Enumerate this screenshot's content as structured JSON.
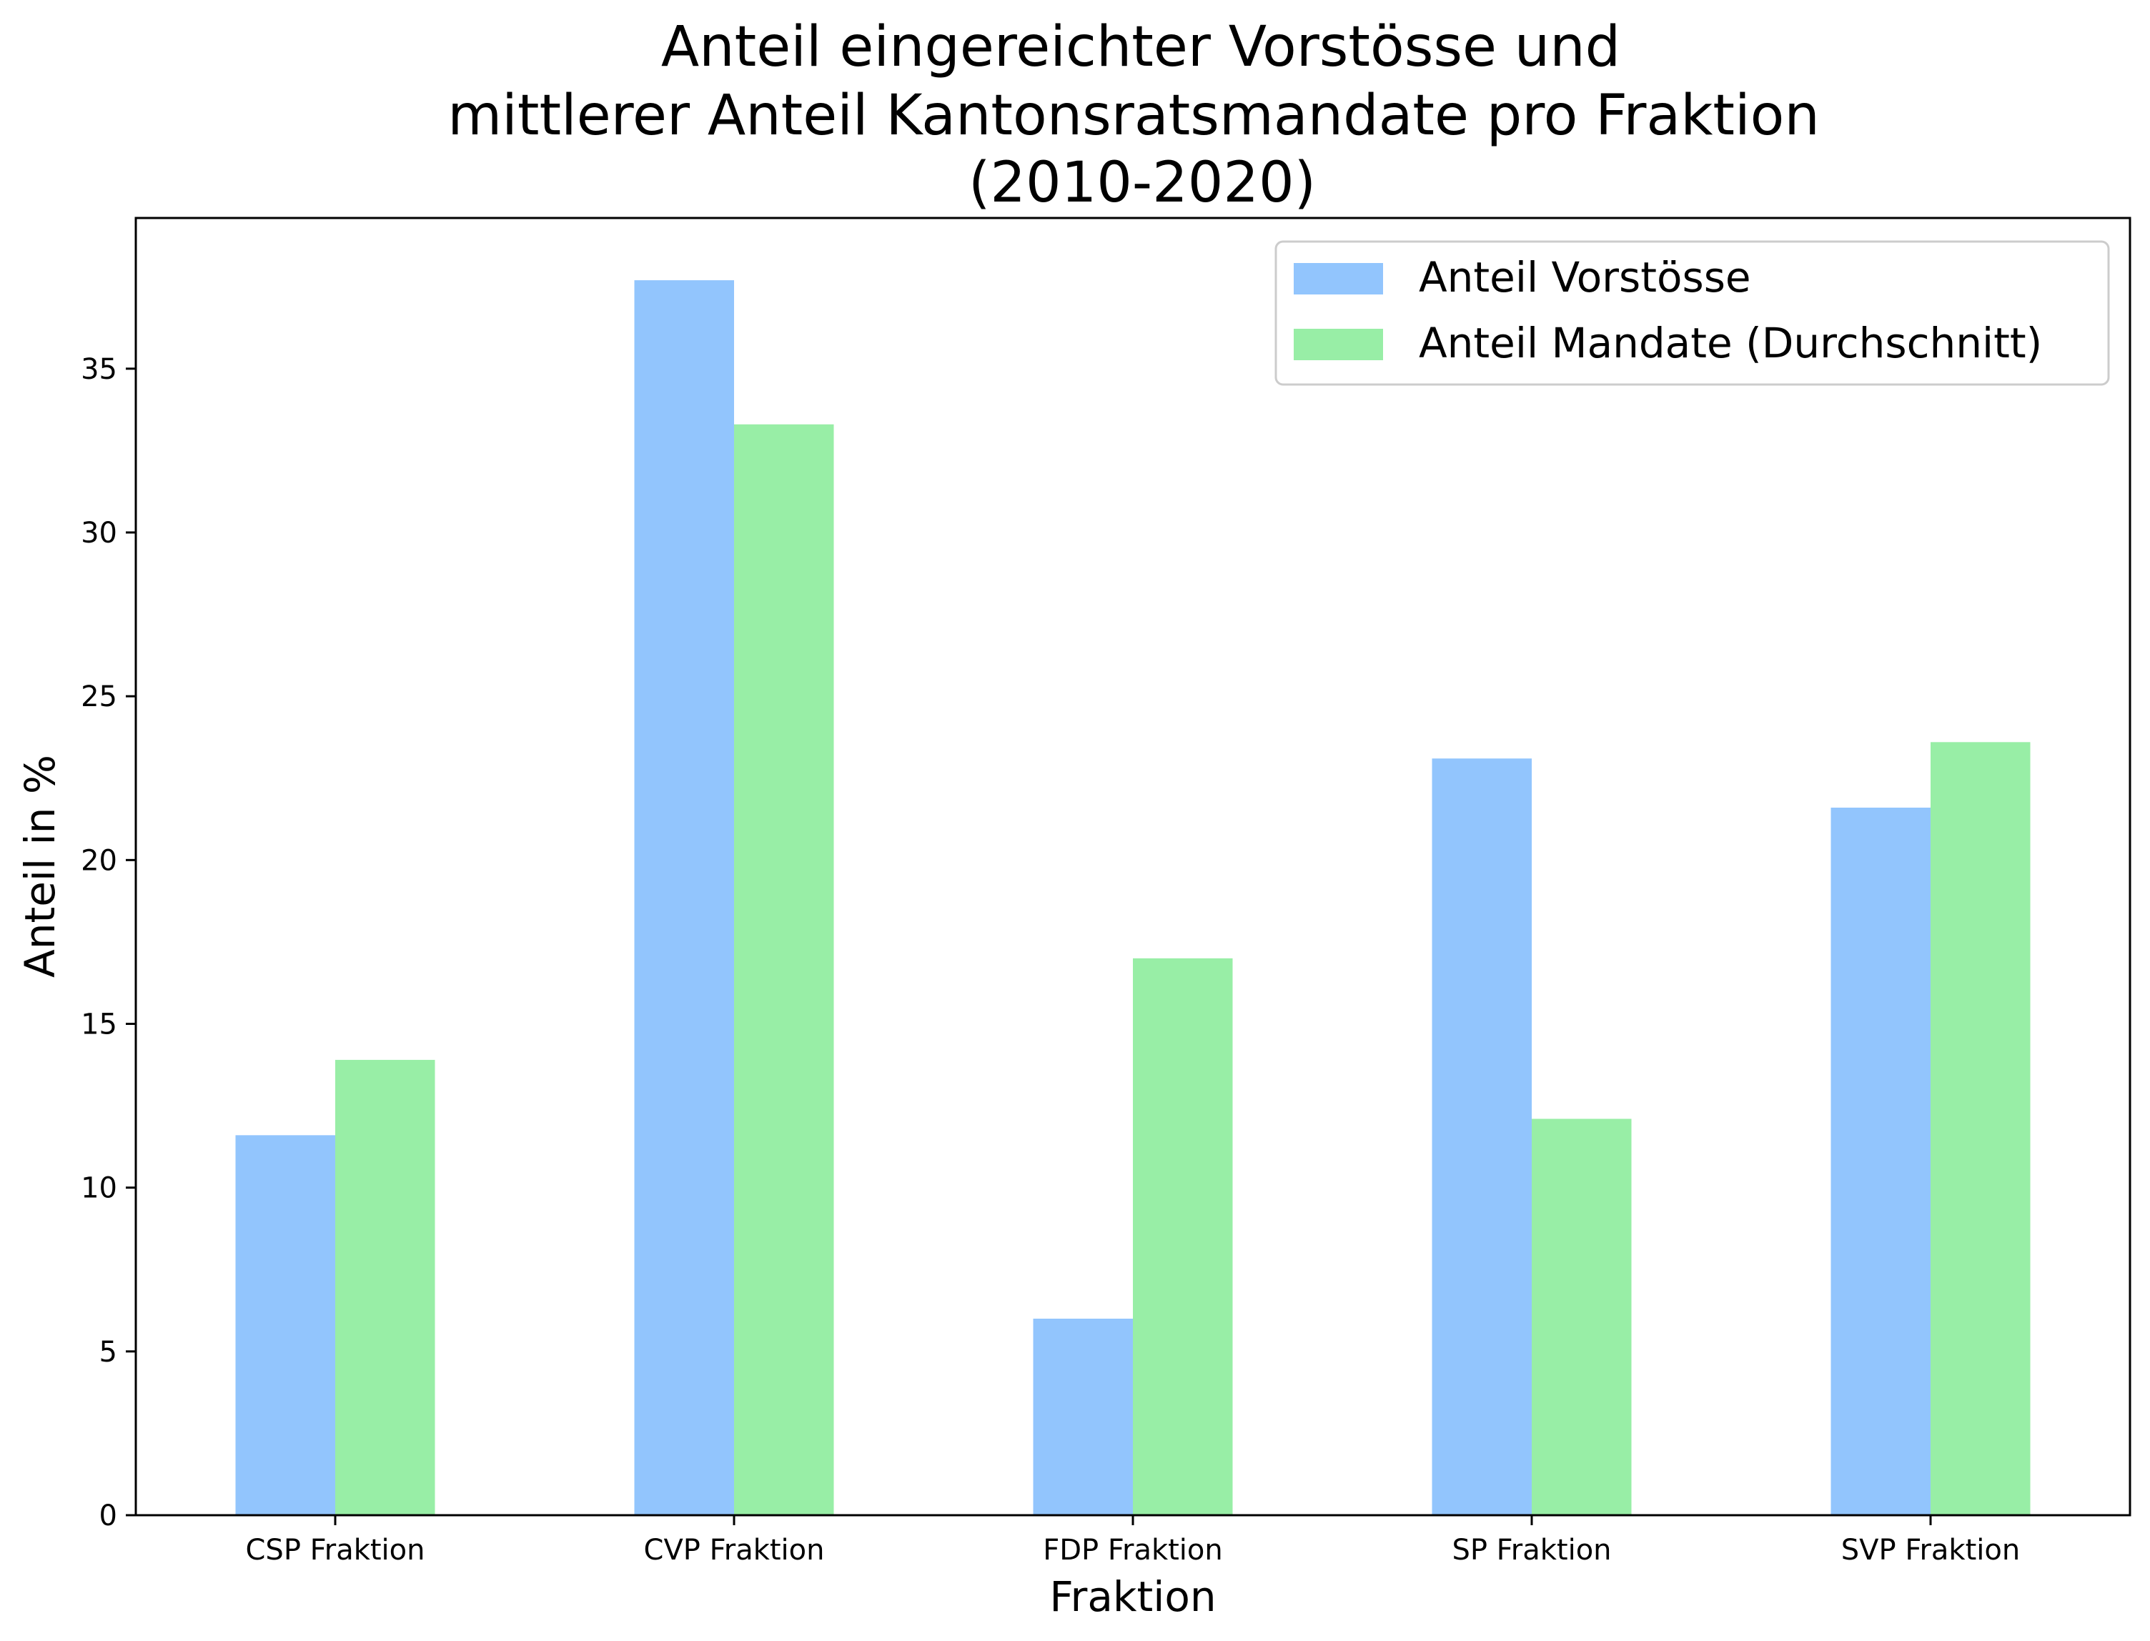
{
  "chart_data": {
    "type": "bar",
    "title_lines": [
      "Anteil eingereichter Vorstösse und",
      "mittlerer Anteil Kantonsratsmandate pro Fraktion",
      "(2010-2020)"
    ],
    "xlabel": "Fraktion",
    "ylabel": "Anteil in %",
    "categories": [
      "CSP Fraktion",
      "CVP Fraktion",
      "FDP Fraktion",
      "SP Fraktion",
      "SVP Fraktion"
    ],
    "series": [
      {
        "name": "Anteil Vorstösse",
        "color": "#92c5fd",
        "values": [
          11.6,
          37.7,
          6.0,
          23.1,
          21.6
        ]
      },
      {
        "name": "Anteil Mandate (Durchschnitt)",
        "color": "#98eea6",
        "values": [
          13.9,
          33.3,
          17.0,
          12.1,
          23.6
        ]
      }
    ],
    "ylim": [
      0,
      39.6
    ],
    "yticks": [
      0,
      5,
      10,
      15,
      20,
      25,
      30,
      35
    ],
    "grid": false,
    "legend_position": "top-right"
  }
}
